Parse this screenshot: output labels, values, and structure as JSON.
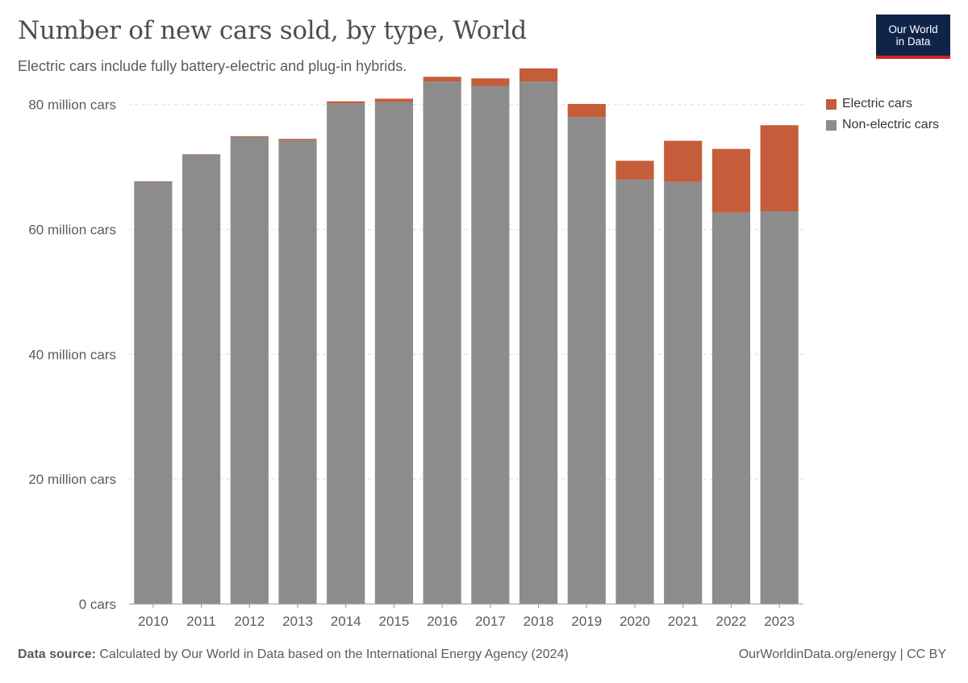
{
  "header": {
    "title": "Number of new cars sold, by type, World",
    "subtitle": "Electric cars include fully battery-electric and plug-in hybrids."
  },
  "logo": {
    "line1": "Our World",
    "line2": "in Data"
  },
  "legend": [
    {
      "label": "Electric cars",
      "color": "#c55c3a"
    },
    {
      "label": "Non-electric cars",
      "color": "#8c8c8c"
    }
  ],
  "footer": {
    "source_label": "Data source:",
    "source_text": "Calculated by Our World in Data based on the International Energy Agency (2024)",
    "right_text": "OurWorldinData.org/energy | CC BY"
  },
  "chart_data": {
    "type": "bar",
    "stacked": true,
    "categories": [
      "2010",
      "2011",
      "2012",
      "2013",
      "2014",
      "2015",
      "2016",
      "2017",
      "2018",
      "2019",
      "2020",
      "2021",
      "2022",
      "2023"
    ],
    "series": [
      {
        "name": "Non-electric cars",
        "color": "#8c8c8c",
        "values": [
          67.7,
          72.0,
          74.8,
          74.3,
          80.2,
          80.4,
          83.7,
          83.0,
          83.7,
          78.0,
          68.0,
          67.6,
          62.7,
          62.9
        ]
      },
      {
        "name": "Electric cars",
        "color": "#c55c3a",
        "values": [
          0.01,
          0.05,
          0.13,
          0.21,
          0.32,
          0.55,
          0.75,
          1.2,
          2.1,
          2.1,
          3.0,
          6.6,
          10.2,
          13.8
        ]
      }
    ],
    "yticks": [
      {
        "value": 0,
        "label": "0 cars"
      },
      {
        "value": 20,
        "label": "20 million cars"
      },
      {
        "value": 40,
        "label": "40 million cars"
      },
      {
        "value": 60,
        "label": "60 million cars"
      },
      {
        "value": 80,
        "label": "80 million cars"
      }
    ],
    "ylim": [
      0,
      85
    ],
    "grid": true,
    "legend_position": "top-right"
  }
}
